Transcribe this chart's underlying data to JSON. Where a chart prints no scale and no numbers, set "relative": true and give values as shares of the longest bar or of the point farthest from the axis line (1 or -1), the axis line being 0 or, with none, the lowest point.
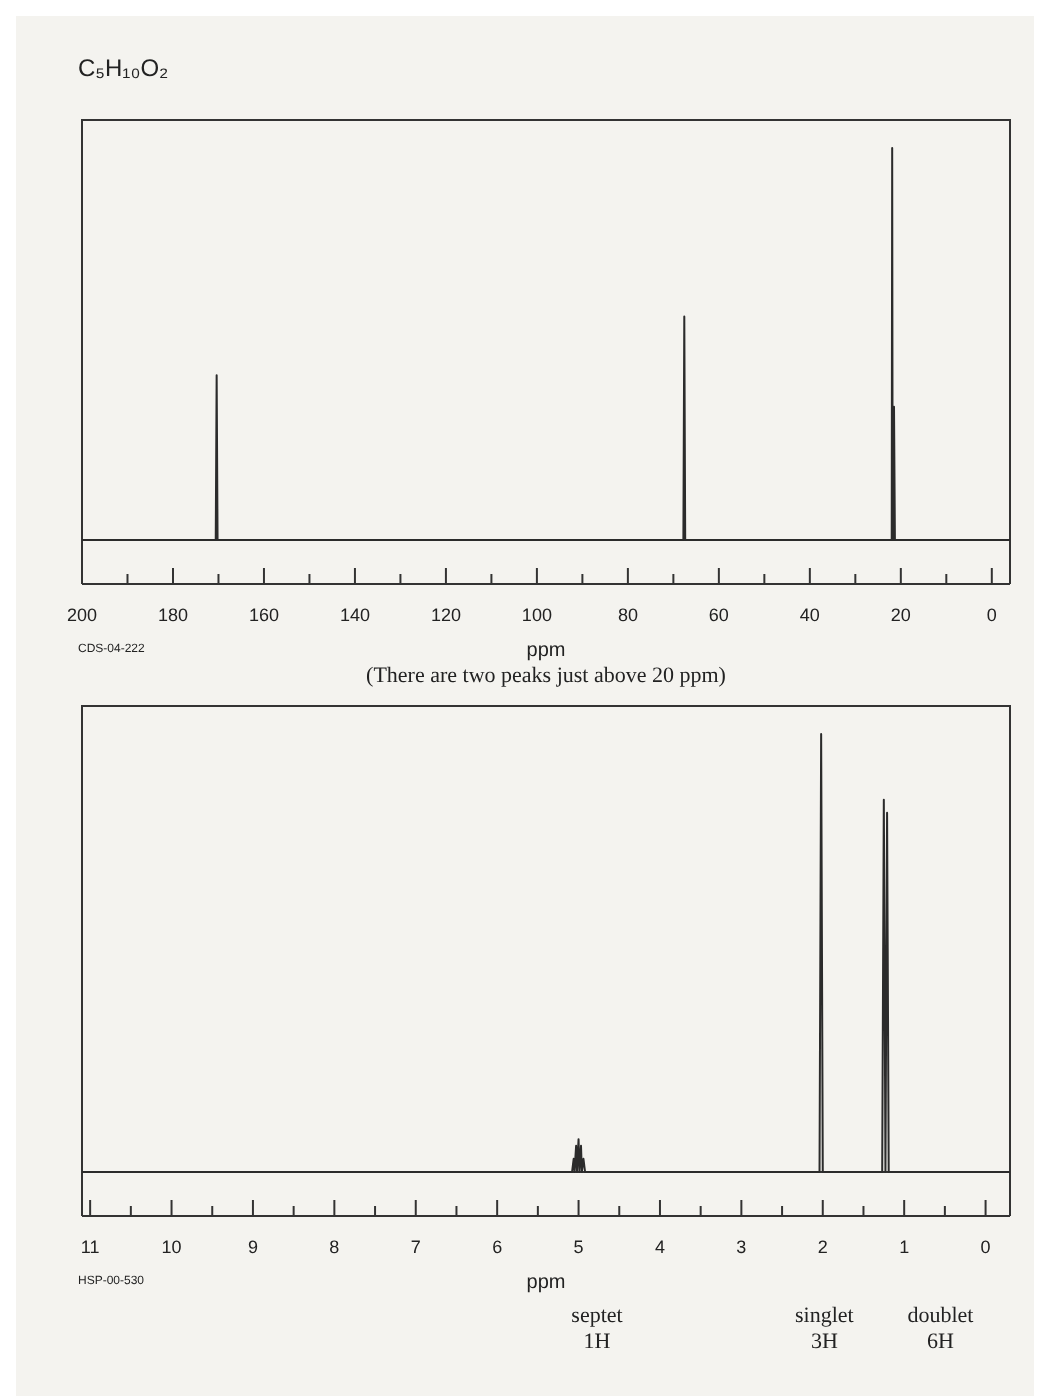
{
  "chart_data": [
    {
      "type": "line",
      "title": "C₅H₁₀O₂",
      "xlabel": "ppm",
      "relative": true,
      "color": "#2b2b2b",
      "marker": "none",
      "x": [
        200,
        171,
        170.6,
        170.4,
        170.2,
        168,
        68.5,
        67.8,
        67.6,
        67.4,
        60,
        22.5,
        22.0,
        21.9,
        21.8,
        21.6,
        21.5,
        21.3,
        18,
        -4
      ],
      "values": [
        0,
        0,
        0,
        0.42,
        0,
        0,
        0,
        0,
        0.57,
        0,
        0,
        0,
        0,
        1,
        0,
        0,
        0.34,
        0,
        0,
        0
      ],
      "xlim": [
        200,
        -4
      ],
      "xticks": [
        200,
        180,
        160,
        140,
        120,
        100,
        80,
        60,
        40,
        20,
        0
      ],
      "annotations": [
        "CDS-04-222",
        "(There are two peaks just above 20 ppm)"
      ]
    },
    {
      "type": "line",
      "xlabel": "ppm",
      "relative": true,
      "color": "#2b2b2b",
      "marker": "none",
      "x": [
        11.1,
        5.2,
        5.08,
        5.06,
        5.05,
        5.03,
        5.02,
        5.0,
        4.99,
        4.97,
        4.96,
        4.94,
        4.92,
        2.2,
        2.04,
        2.02,
        2.0,
        1.4,
        1.27,
        1.25,
        1.23,
        1.21,
        1.19,
        1.1,
        -0.3
      ],
      "values": [
        0,
        0,
        0,
        0.03,
        0,
        0.06,
        0,
        0.075,
        0,
        0.06,
        0,
        0.03,
        0,
        0,
        0,
        1,
        0,
        0,
        0,
        0.85,
        0,
        0.82,
        0,
        0,
        0
      ],
      "xlim": [
        11.1,
        -0.3
      ],
      "xticks": [
        11,
        10,
        9,
        8,
        7,
        6,
        5,
        4,
        3,
        2,
        1,
        0
      ],
      "annotations": [
        "HSP-00-530",
        "septet\n1H",
        "singlet\n3H",
        "doublet\n6H"
      ]
    }
  ]
}
